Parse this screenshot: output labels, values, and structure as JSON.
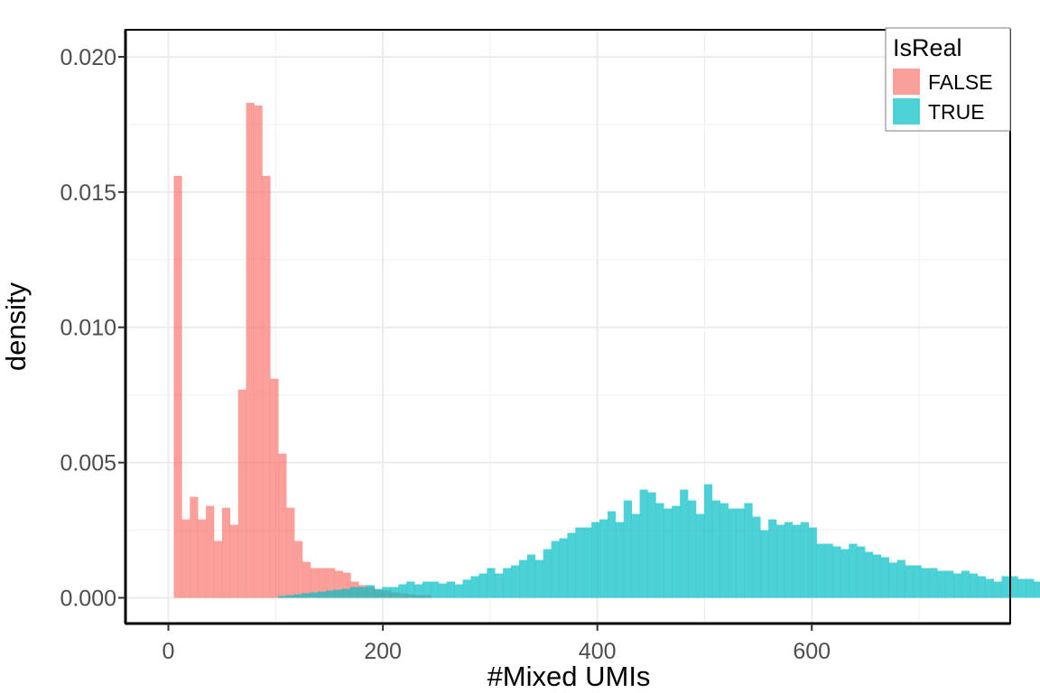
{
  "chart_data": {
    "type": "bar",
    "subtype": "histogram-overlaid",
    "title": "",
    "xlabel": "#Mixed UMIs",
    "ylabel": "density",
    "xlim": [
      -40,
      785
    ],
    "ylim": [
      -0.00095,
      0.021
    ],
    "x_ticks": [
      0,
      200,
      400,
      600
    ],
    "y_ticks": [
      0.0,
      0.005,
      0.01,
      0.015,
      0.02
    ],
    "x_tick_labels": [
      "0",
      "200",
      "400",
      "600"
    ],
    "y_tick_labels": [
      "0.000",
      "0.005",
      "0.010",
      "0.015",
      "0.020"
    ],
    "grid": true,
    "bin_width": 7.5,
    "legend": {
      "title": "IsReal",
      "position": "top-right",
      "entries": [
        "FALSE",
        "TRUE"
      ]
    },
    "series": [
      {
        "name": "FALSE",
        "color": "#F8766D",
        "opacity": 0.7,
        "x_start": 5,
        "values": [
          0.0156,
          0.0029,
          0.00373,
          0.0029,
          0.0034,
          0.0021,
          0.00333,
          0.0027,
          0.0077,
          0.0183,
          0.0182,
          0.0156,
          0.0081,
          0.00533,
          0.00333,
          0.0021,
          0.00133,
          0.0011,
          0.0011,
          0.0011,
          0.001,
          0.00093,
          0.0006,
          0.00047,
          0.0004,
          0.0003,
          0.00027,
          0.0002,
          0.00017,
          0.00013,
          0.0001,
          0.0001
        ]
      },
      {
        "name": "TRUE",
        "color": "#00BFC4",
        "opacity": 0.7,
        "x_start": 102,
        "values": [
          7e-05,
          0.0001,
          0.00013,
          0.00017,
          0.0002,
          0.00023,
          0.00027,
          0.0003,
          0.00033,
          0.0004,
          0.0004,
          0.00047,
          0.00033,
          0.0004,
          0.0004,
          0.0005,
          0.0006,
          0.0005,
          0.0006,
          0.0006,
          0.00053,
          0.0006,
          0.0005,
          0.00067,
          0.0008,
          0.0009,
          0.0011,
          0.0009,
          0.0011,
          0.0012,
          0.0014,
          0.0016,
          0.0014,
          0.0018,
          0.0021,
          0.0022,
          0.0024,
          0.0026,
          0.0026,
          0.0028,
          0.0029,
          0.0032,
          0.0028,
          0.0036,
          0.0031,
          0.004,
          0.0039,
          0.0035,
          0.0033,
          0.0034,
          0.004,
          0.0036,
          0.0031,
          0.0042,
          0.0036,
          0.0035,
          0.0033,
          0.0033,
          0.0035,
          0.003,
          0.0025,
          0.0029,
          0.0027,
          0.0028,
          0.0027,
          0.0028,
          0.0026,
          0.002,
          0.002,
          0.0019,
          0.0018,
          0.002,
          0.0019,
          0.0017,
          0.0016,
          0.0015,
          0.0013,
          0.0014,
          0.0012,
          0.0012,
          0.0011,
          0.0011,
          0.001,
          0.001,
          0.0009,
          0.001,
          0.0009,
          0.0008,
          0.0007,
          0.0006,
          0.0008,
          0.0008,
          0.0007,
          0.0007,
          0.0006,
          0.0006,
          0.0005,
          0.0004,
          0.0003,
          0.0004,
          0.0004,
          0.0005,
          0.0004,
          0.0005,
          0.0005,
          0.0003,
          0.0004,
          0.0003,
          0.0003,
          0.0002,
          0.0003,
          0.0002
        ]
      }
    ]
  }
}
